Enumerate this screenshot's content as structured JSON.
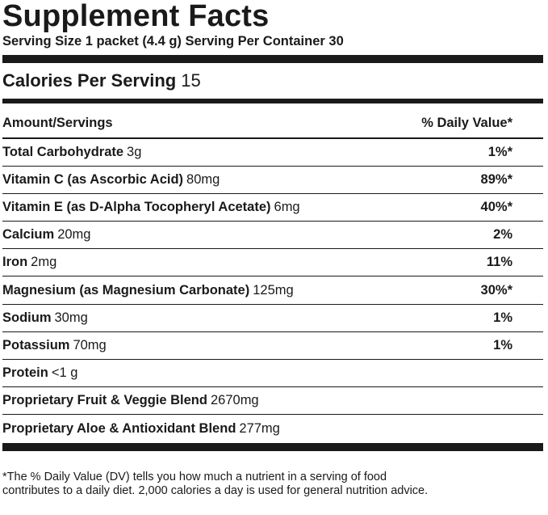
{
  "title": "Supplement Facts",
  "serving": "Serving Size 1 packet (4.4 g) Serving Per Container 30",
  "calories": {
    "label": "Calories Per Serving",
    "value": "15"
  },
  "header": {
    "amount": "Amount/Servings",
    "daily_value": "% Daily Value*"
  },
  "rows": [
    {
      "name": "Total Carbohydrate",
      "amount": "3g",
      "dv": "1%*"
    },
    {
      "name": "Vitamin C (as Ascorbic Acid)",
      "amount": "80mg",
      "dv": "89%*"
    },
    {
      "name": "Vitamin E (as D-Alpha Tocopheryl Acetate)",
      "amount": "6mg",
      "dv": "40%*"
    },
    {
      "name": "Calcium",
      "amount": "20mg",
      "dv": "2%"
    },
    {
      "name": "Iron",
      "amount": "2mg",
      "dv": "11%"
    },
    {
      "name": "Magnesium (as Magnesium Carbonate)",
      "amount": "125mg",
      "dv": "30%*"
    },
    {
      "name": "Sodium",
      "amount": "30mg",
      "dv": "1%"
    },
    {
      "name": "Potassium",
      "amount": "70mg",
      "dv": "1%"
    },
    {
      "name": "Protein",
      "amount": "<1 g",
      "dv": ""
    },
    {
      "name": "Proprietary Fruit & Veggie Blend",
      "amount": "2670mg",
      "dv": ""
    },
    {
      "name": "Proprietary Aloe & Antioxidant Blend",
      "amount": "277mg",
      "dv": ""
    }
  ],
  "footnote": {
    "line1": "*The % Daily Value (DV) tells you how much a nutrient in a serving of food",
    "line2": "contributes to a daily diet. 2,000 calories a day is used for general nutrition advice."
  }
}
